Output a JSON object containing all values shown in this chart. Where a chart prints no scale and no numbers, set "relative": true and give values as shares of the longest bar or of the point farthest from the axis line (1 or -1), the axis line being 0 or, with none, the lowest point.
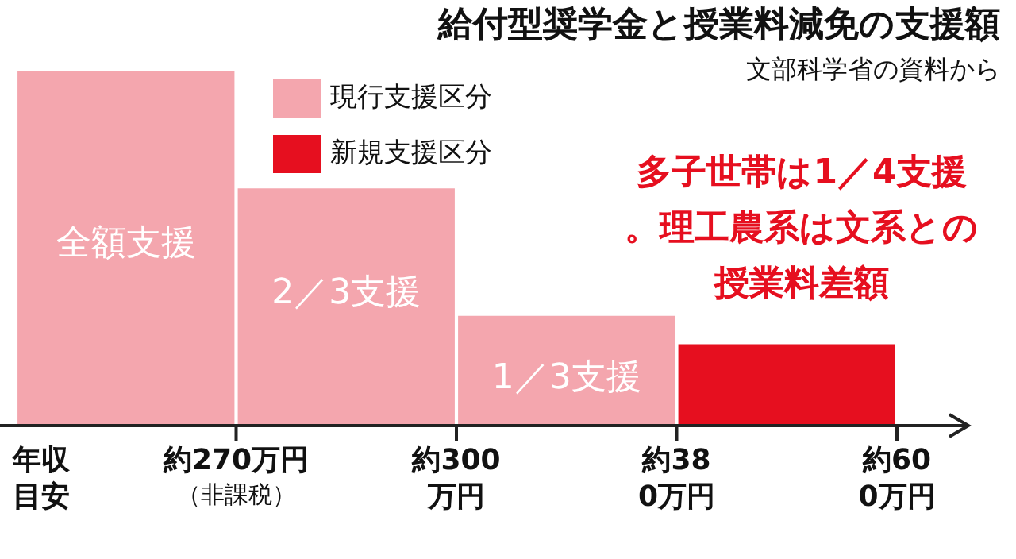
{
  "chart_data": {
    "type": "bar",
    "title": "給付型奨学金と授業料減免の支援額",
    "subtitle": "文部科学省の資料から",
    "xlabel": "年収目安",
    "categories": [
      "約270万円（非課税）",
      "約300万円",
      "約380万円",
      "約600万円"
    ],
    "series": [
      {
        "name": "現行支援区分",
        "color": "#f4a6ae",
        "values": [
          1,
          0.67,
          0.31,
          null
        ]
      },
      {
        "name": "新規支援区分",
        "color": "#e60f1f",
        "values": [
          null,
          null,
          null,
          0.23
        ]
      }
    ],
    "stacked": true,
    "relative": true,
    "legend": "top",
    "annotations": [
      {
        "text": "全額支援",
        "x": "約270万円（非課税）",
        "y": 0.51
      },
      {
        "text": "2／3支援",
        "x": "約300万円",
        "y": 0.37
      },
      {
        "text": "1／3支援",
        "x": "約380万円",
        "y": 0.13
      },
      "多子世帯は1／4支援。理工農系は文系との授業料差額"
    ]
  }
}
